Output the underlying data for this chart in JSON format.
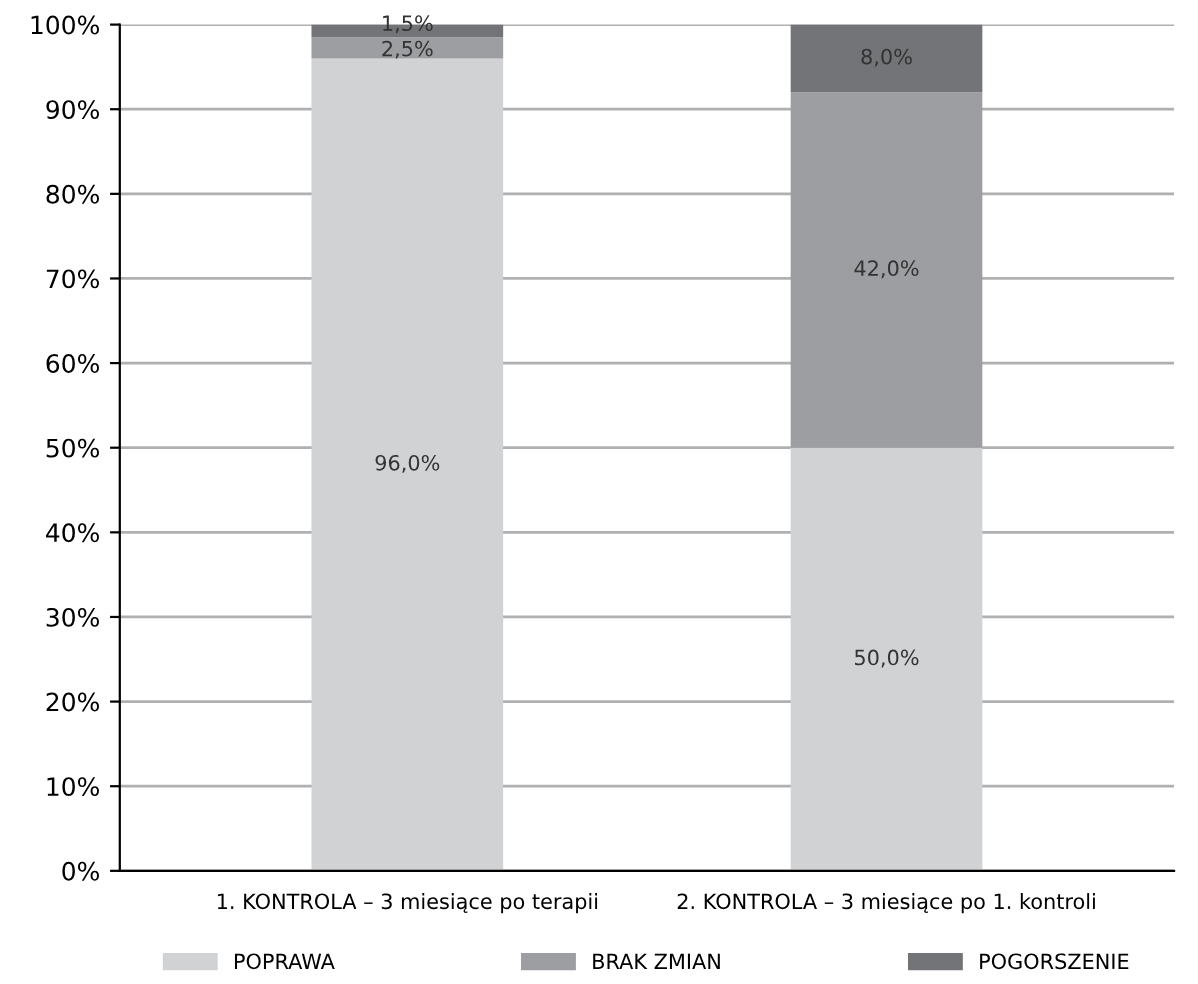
{
  "chart_data": {
    "type": "bar",
    "stacked": true,
    "categories": [
      "1. KONTROLA – 3 miesiące po terapii",
      "2. KONTROLA – 3 miesiące po 1. kontroli"
    ],
    "series": [
      {
        "name": "POPRAWA",
        "color": "#d1d2d4",
        "values": [
          96.0,
          50.0
        ],
        "value_labels": [
          "96,0%",
          "50,0%"
        ]
      },
      {
        "name": "BRAK ZMIAN",
        "color": "#9d9ea1",
        "values": [
          2.5,
          42.0
        ],
        "value_labels": [
          "2,5%",
          "42,0%"
        ]
      },
      {
        "name": "POGORSZENIE",
        "color": "#737477",
        "values": [
          1.5,
          8.0
        ],
        "value_labels": [
          "1,5%",
          "8,0%"
        ]
      }
    ],
    "ylim": [
      0,
      100
    ],
    "yticks": [
      {
        "value": 0,
        "label": "0%"
      },
      {
        "value": 10,
        "label": "10%"
      },
      {
        "value": 20,
        "label": "20%"
      },
      {
        "value": 30,
        "label": "30%"
      },
      {
        "value": 40,
        "label": "40%"
      },
      {
        "value": 50,
        "label": "50%"
      },
      {
        "value": 60,
        "label": "60%"
      },
      {
        "value": 70,
        "label": "70%"
      },
      {
        "value": 80,
        "label": "80%"
      },
      {
        "value": 90,
        "label": "90%"
      },
      {
        "value": 100,
        "label": "100%"
      }
    ],
    "grid": "y",
    "legend": "bottom"
  }
}
